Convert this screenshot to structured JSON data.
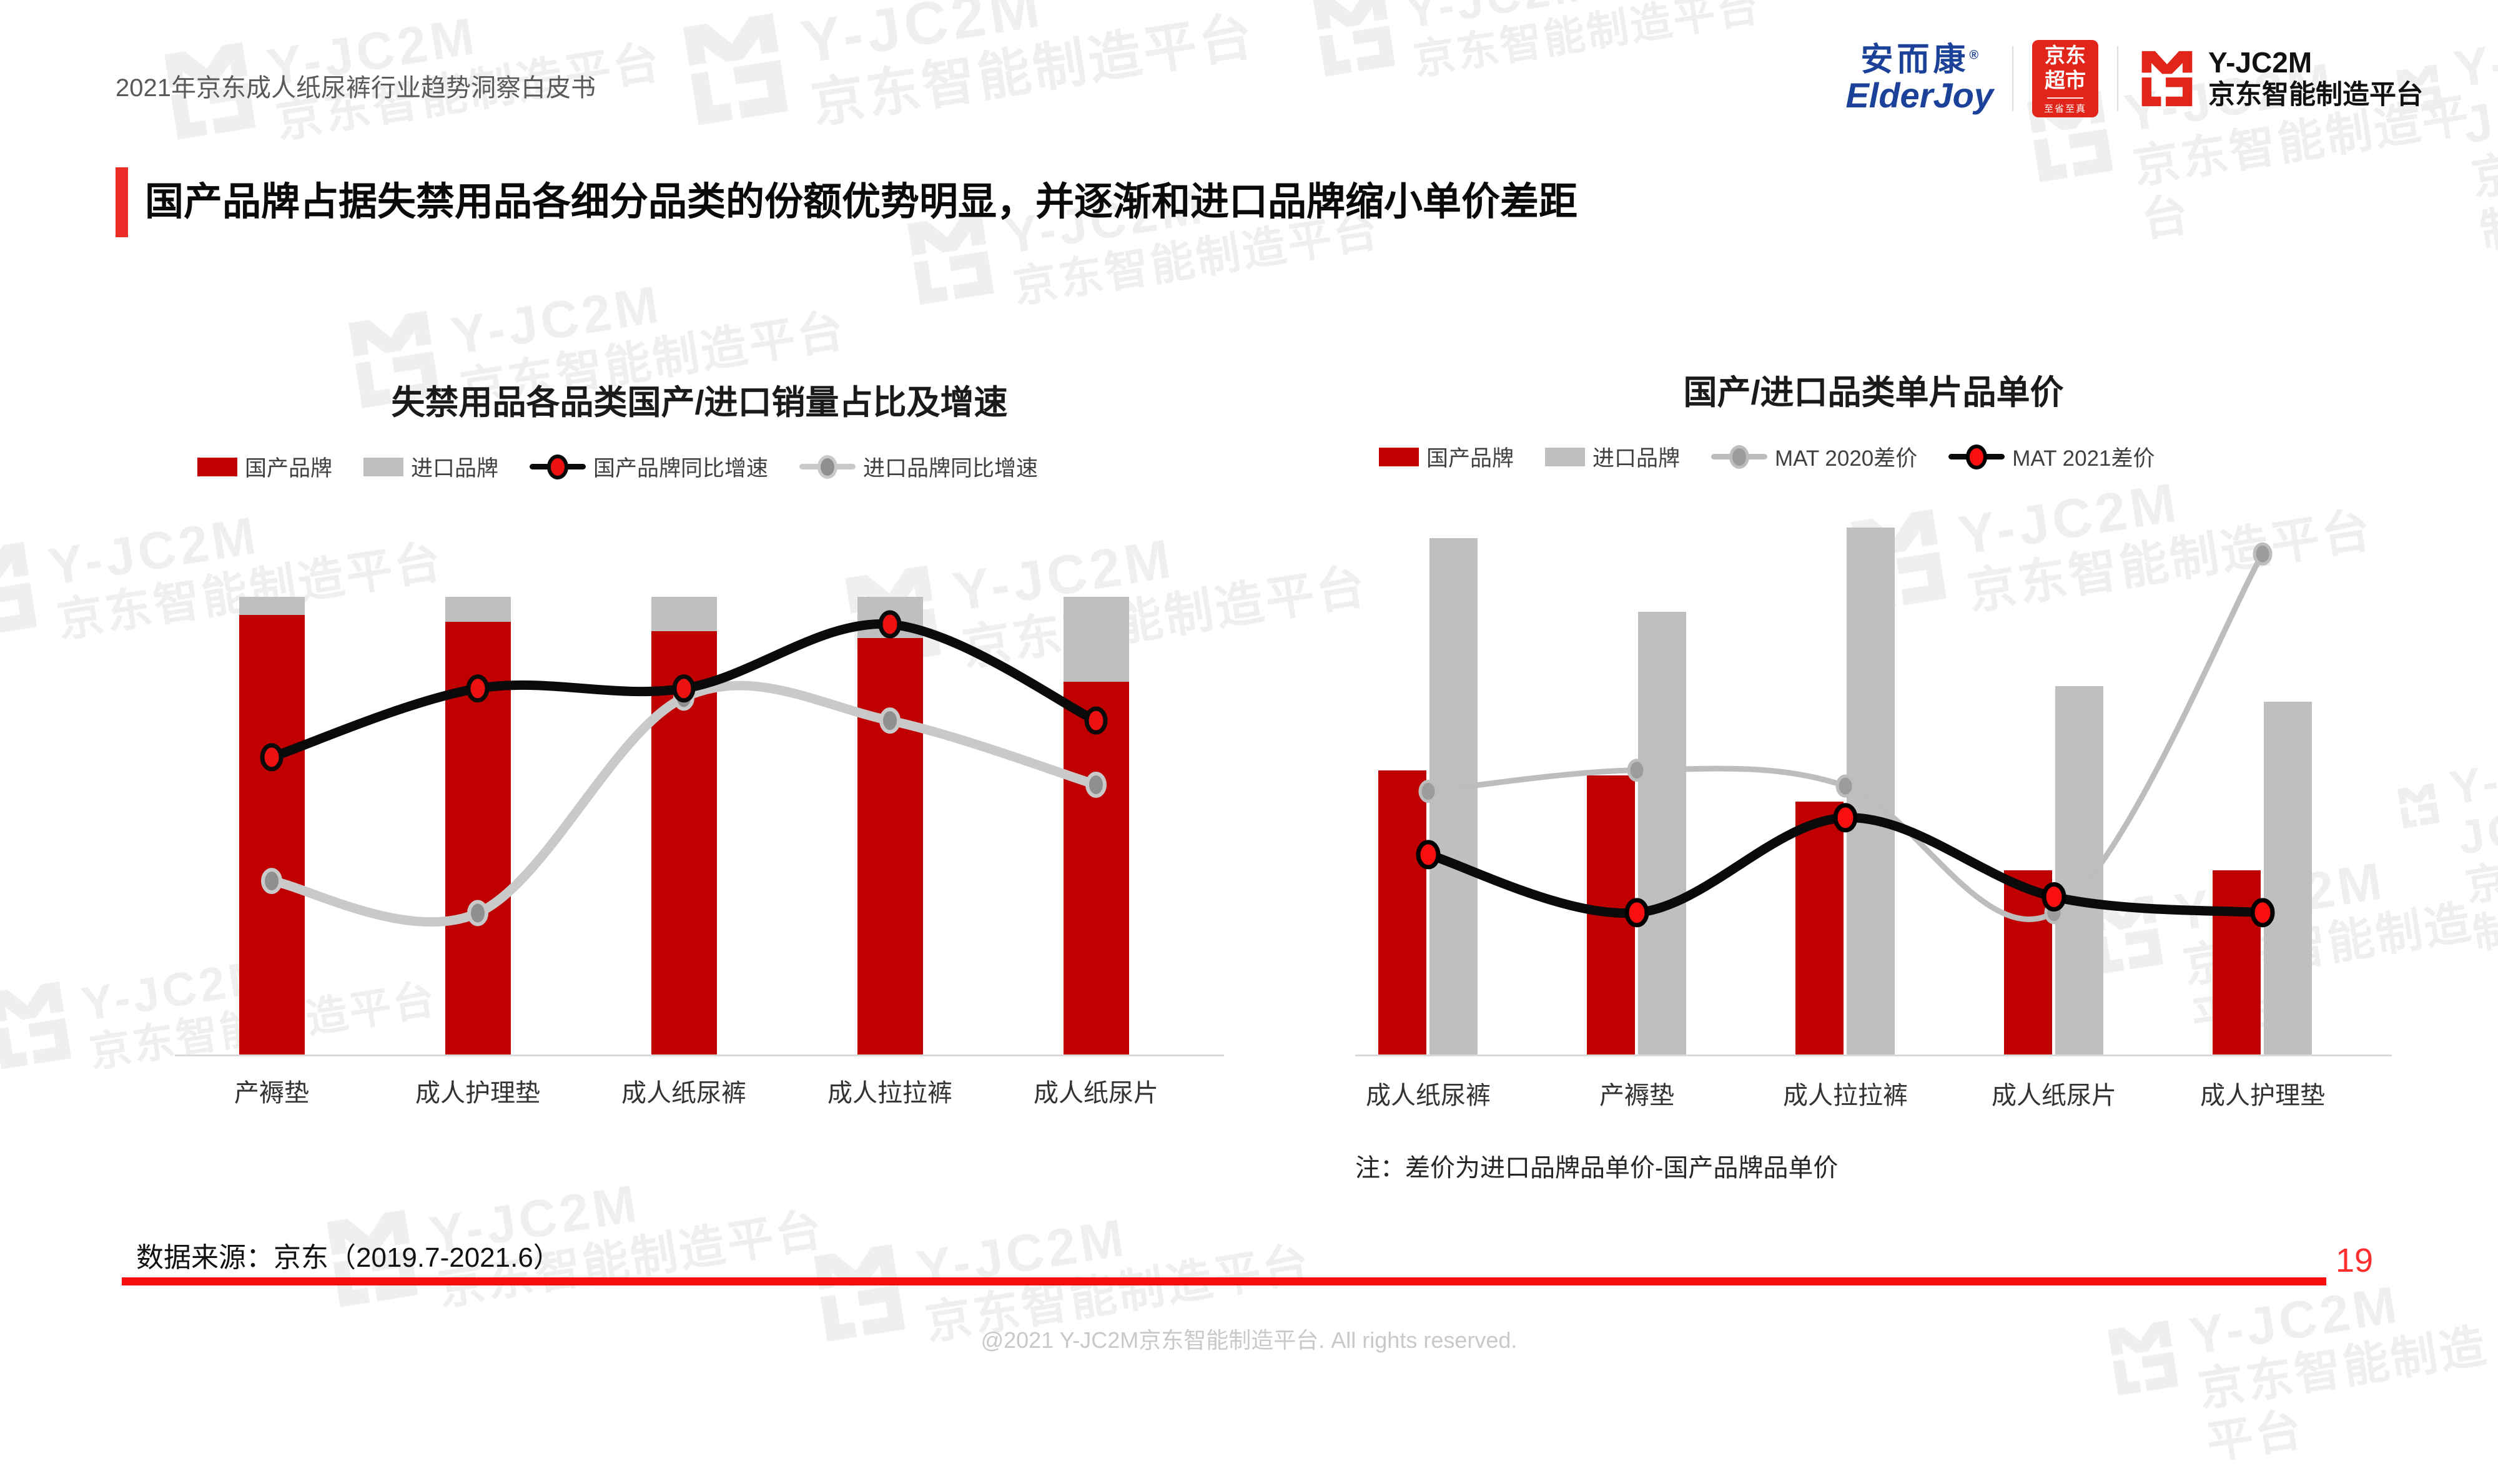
{
  "page": {
    "header_title": "2021年京东成人纸尿裤行业趋势洞察白皮书",
    "slide_title": "国产品牌占据失禁用品各细分品类的份额优势明显，并逐渐和进口品牌缩小单价差距",
    "data_source": "数据来源：京东（2019.7-2021.6）",
    "page_number": "19",
    "footer": "@2021 Y-JC2M京东智能制造平台. All rights reserved.",
    "watermark": {
      "brand": "Y-JC2M",
      "subtitle": "京东智能制造平台"
    }
  },
  "logos": {
    "elderjoy": {
      "cn": "安而康",
      "reg": "®",
      "en": "ElderJoy"
    },
    "jd_supermarket": {
      "line1": "京东",
      "line2": "超市",
      "tagline": "至省至真"
    },
    "yjc2m": {
      "name": "Y-JC2M",
      "subtitle": "京东智能制造平台"
    }
  },
  "colors": {
    "domestic_bar": "#C00000",
    "import_bar": "#BFBFBF",
    "accent_red": "#EC2C26",
    "jd_red": "#E1251B",
    "rule_red": "#F60D0D",
    "watermark_gray": "#EFEFEF"
  },
  "chart_data": [
    {
      "type": "bar",
      "subtype": "100%-stacked bars with two smoothed growth lines; no numeric axis labels shown",
      "title": "失禁用品各品类国产/进口销量占比及增速",
      "categories": [
        "产褥垫",
        "成人护理垫",
        "成人纸尿裤",
        "成人拉拉裤",
        "成人纸尿片"
      ],
      "bar_series": [
        {
          "name": "国产品牌",
          "color": "#C00000",
          "unit": "% share of category sales (estimated from bars)",
          "values": [
            96,
            94.5,
            92.5,
            91,
            81.5
          ]
        },
        {
          "name": "进口品牌",
          "color": "#BFBFBF",
          "unit": "% share of category sales (estimated from bars)",
          "values": [
            4,
            5.5,
            7.5,
            9,
            18.5
          ]
        }
      ],
      "line_series": [
        {
          "name": "国产品牌同比增速",
          "line_color": "#0a0a0a",
          "marker_color": "#ed1111",
          "marker_stroke": "#0a0a0a",
          "unit": "relative height 0-100, secondary axis unlabeled",
          "values": [
            65,
            80,
            80,
            94,
            73
          ]
        },
        {
          "name": "进口品牌同比增速",
          "line_color": "#c9c9c9",
          "marker_color": "#8f8f8f",
          "marker_stroke": "#c9c9c9",
          "unit": "relative height 0-100, secondary axis unlabeled",
          "values": [
            38,
            31,
            78,
            73,
            59
          ]
        }
      ],
      "legend_position": "top",
      "grid": false,
      "ylim": [
        0,
        100
      ]
    },
    {
      "type": "bar",
      "subtype": "grouped bars (domestic vs import unit price) with two price-gap lines; no numeric axis labels shown",
      "title": "国产/进口品类单片品单价",
      "categories": [
        "成人纸尿裤",
        "产褥垫",
        "成人拉拉裤",
        "成人纸尿片",
        "成人护理垫"
      ],
      "bar_series": [
        {
          "name": "国产品牌",
          "color": "#C00000",
          "unit": "relative unit price 0-100 (axis unlabeled)",
          "values": [
            54,
            53,
            48,
            35,
            35
          ]
        },
        {
          "name": "进口品牌",
          "color": "#BFBFBF",
          "unit": "relative unit price 0-100 (axis unlabeled)",
          "values": [
            98,
            84,
            100,
            70,
            67
          ]
        }
      ],
      "line_series": [
        {
          "name": "MAT 2020差价",
          "line_color": "#bdbdbd",
          "marker_color": "#9c9c9c",
          "marker_stroke": "#bdbdbd",
          "unit": "relative 0-100 (axis unlabeled)",
          "values": [
            50,
            54,
            51,
            27,
            95
          ]
        },
        {
          "name": "MAT 2021差价",
          "line_color": "#0a0a0a",
          "marker_color": "#fa0f0f",
          "marker_stroke": "#000000",
          "unit": "relative 0-100 (axis unlabeled)",
          "values": [
            38,
            27,
            45,
            30,
            27
          ]
        }
      ],
      "note": "注：差价为进口品牌品单价-国产品牌品单价",
      "legend_position": "top",
      "grid": false
    }
  ]
}
